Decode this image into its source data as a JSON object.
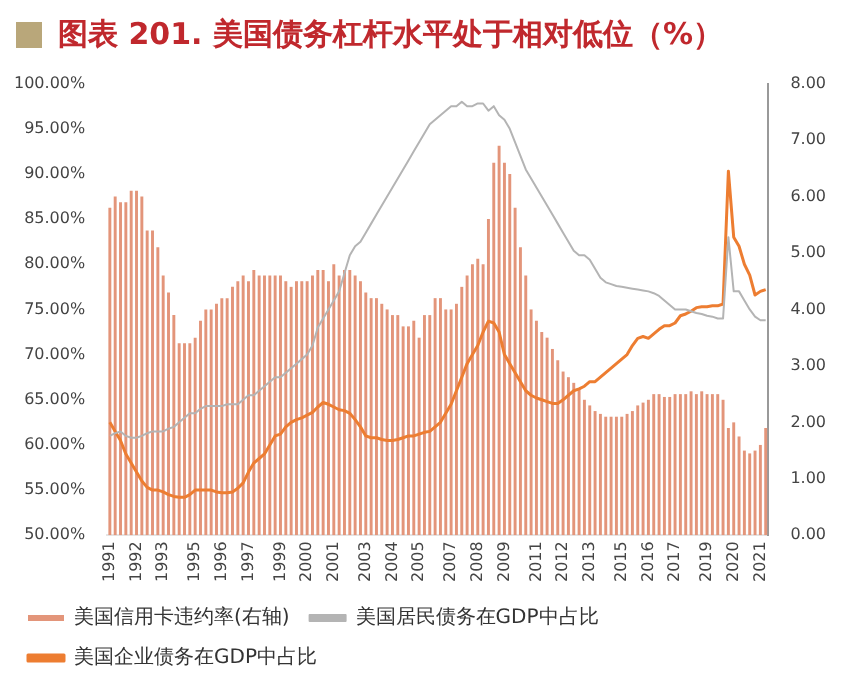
{
  "chart_data": {
    "type": "bar",
    "title": "图表 201. 美国债务杠杆水平处于相对低位（%）",
    "categories": [
      "1991",
      null,
      null,
      null,
      null,
      "1992",
      null,
      null,
      null,
      null,
      "1993",
      null,
      null,
      null,
      null,
      null,
      "1995",
      null,
      null,
      null,
      null,
      "1996",
      null,
      null,
      null,
      null,
      "1997",
      null,
      null,
      null,
      null,
      null,
      "1999",
      null,
      null,
      null,
      null,
      "2000",
      null,
      null,
      null,
      null,
      "2001",
      null,
      null,
      null,
      null,
      null,
      "2003",
      null,
      null,
      null,
      null,
      "2004",
      null,
      null,
      null,
      null,
      "2005",
      null,
      null,
      null,
      null,
      null,
      "2007",
      null,
      null,
      null,
      null,
      "2008",
      null,
      null,
      null,
      null,
      "2009",
      null,
      null,
      null,
      null,
      null,
      "2011",
      null,
      null,
      null,
      null,
      "2012",
      null,
      null,
      null,
      null,
      "2013",
      null,
      null,
      null,
      null,
      null,
      "2015",
      null,
      null,
      null,
      null,
      "2016",
      null,
      null,
      null,
      null,
      "2017",
      null,
      null,
      null,
      null,
      null,
      "2019",
      null,
      null,
      null,
      null,
      "2020",
      null,
      null,
      null,
      null,
      "2021",
      null
    ],
    "series": [
      {
        "name": "美国信用卡违约率(右轴)",
        "axis": "y2",
        "color": "#e3957a",
        "values": [
          5.8,
          6.0,
          5.9,
          5.9,
          6.1,
          6.1,
          6.0,
          5.4,
          5.4,
          5.1,
          4.6,
          4.3,
          3.9,
          3.4,
          3.4,
          3.4,
          3.5,
          3.8,
          4.0,
          4.0,
          4.1,
          4.2,
          4.2,
          4.4,
          4.5,
          4.6,
          4.5,
          4.7,
          4.6,
          4.6,
          4.6,
          4.6,
          4.6,
          4.5,
          4.4,
          4.5,
          4.5,
          4.5,
          4.6,
          4.7,
          4.7,
          4.5,
          4.8,
          4.6,
          4.7,
          4.7,
          4.6,
          4.5,
          4.3,
          4.2,
          4.2,
          4.1,
          4.0,
          3.9,
          3.9,
          3.7,
          3.7,
          3.8,
          3.5,
          3.9,
          3.9,
          4.2,
          4.2,
          4.0,
          4.0,
          4.1,
          4.4,
          4.6,
          4.8,
          4.9,
          4.8,
          5.6,
          6.6,
          6.9,
          6.6,
          6.4,
          5.8,
          5.1,
          4.6,
          4.0,
          3.8,
          3.6,
          3.5,
          3.3,
          3.1,
          2.9,
          2.8,
          2.7,
          2.6,
          2.4,
          2.3,
          2.2,
          2.15,
          2.1,
          2.1,
          2.1,
          2.1,
          2.15,
          2.2,
          2.3,
          2.35,
          2.4,
          2.5,
          2.5,
          2.45,
          2.45,
          2.5,
          2.5,
          2.5,
          2.55,
          2.5,
          2.55,
          2.5,
          2.5,
          2.5,
          2.4,
          1.9,
          2.0,
          1.75,
          1.5,
          1.45,
          1.5,
          1.6,
          1.9
        ]
      },
      {
        "name": "美国居民债务在GDP中占比",
        "type": "line",
        "color": "#b4b4b4",
        "values": [
          61,
          61.3,
          61.5,
          61,
          60.8,
          60.8,
          61,
          61.3,
          61.5,
          61.5,
          61.5,
          61.8,
          62,
          62.5,
          63,
          63.5,
          63.5,
          64,
          64.3,
          64.3,
          64.3,
          64.3,
          64.5,
          64.5,
          64.5,
          65,
          65.5,
          65.5,
          66,
          66.5,
          67,
          67.5,
          67.5,
          68,
          68.5,
          69,
          69.5,
          70,
          71,
          73,
          74,
          75,
          76,
          77,
          79,
          81,
          82,
          82.5,
          83.5,
          84.5,
          85.5,
          86.5,
          87.5,
          88.5,
          89.5,
          90.5,
          91.5,
          92.5,
          93.5,
          94.5,
          95.5,
          96,
          96.5,
          97,
          97.5,
          97.5,
          98,
          97.5,
          97.5,
          97.8,
          97.8,
          97,
          97.5,
          96.5,
          96,
          95,
          93.5,
          92,
          90.5,
          89.5,
          88.5,
          87.5,
          86.5,
          85.5,
          84.5,
          83.5,
          82.5,
          81.5,
          81,
          81,
          80.5,
          79.5,
          78.5,
          78,
          77.8,
          77.6,
          77.5,
          77.4,
          77.3,
          77.2,
          77.1,
          77,
          76.8,
          76.5,
          76,
          75.5,
          75,
          75,
          75,
          74.8,
          74.6,
          74.5,
          74.3,
          74.2,
          74,
          74,
          83,
          77,
          77,
          76,
          75,
          74.2,
          73.8,
          73.8
        ]
      },
      {
        "name": "美国企业债务在GDP中占比",
        "type": "line",
        "color": "#ed7d31",
        "values": [
          62.5,
          61.5,
          60.5,
          59,
          58,
          57,
          56,
          55.3,
          55,
          55,
          54.8,
          54.5,
          54.3,
          54.2,
          54.2,
          54.5,
          55,
          55,
          55,
          55,
          54.8,
          54.7,
          54.7,
          54.8,
          55.2,
          55.8,
          57,
          58,
          58.5,
          59,
          60,
          61,
          61.2,
          62,
          62.5,
          62.8,
          63,
          63.3,
          63.6,
          64.2,
          64.7,
          64.5,
          64.2,
          63.9,
          63.8,
          63.5,
          62.8,
          62,
          61,
          60.8,
          60.8,
          60.6,
          60.5,
          60.5,
          60.6,
          60.8,
          61,
          61,
          61.2,
          61.4,
          61.5,
          62,
          62.5,
          63.5,
          64.5,
          66,
          67.5,
          69,
          70,
          71,
          72.5,
          73.7,
          73.5,
          72.5,
          70,
          69,
          68,
          67,
          66,
          65.5,
          65.2,
          65,
          64.8,
          64.6,
          64.6,
          65,
          65.5,
          66,
          66.2,
          66.5,
          67,
          67,
          67.5,
          68,
          68.5,
          69,
          69.5,
          70,
          71,
          71.8,
          72,
          71.8,
          72.3,
          72.8,
          73.2,
          73.2,
          73.5,
          74.3,
          74.5,
          74.8,
          75.2,
          75.3,
          75.3,
          75.4,
          75.4,
          75.6,
          90.3,
          83,
          82,
          80,
          78.8,
          76.6,
          77,
          77.2
        ]
      }
    ],
    "ylim": [
      50,
      100
    ],
    "yticks": [
      {
        "value": 50,
        "label": "50.00%"
      },
      {
        "value": 55,
        "label": "55.00%"
      },
      {
        "value": 60,
        "label": "60.00%"
      },
      {
        "value": 65,
        "label": "65.00%"
      },
      {
        "value": 70,
        "label": "70.00%"
      },
      {
        "value": 75,
        "label": "75.00%"
      },
      {
        "value": 80,
        "label": "80.00%"
      },
      {
        "value": 85,
        "label": "85.00%"
      },
      {
        "value": 90,
        "label": "90.00%"
      },
      {
        "value": 95,
        "label": "95.00%"
      },
      {
        "value": 100,
        "label": "100.00%"
      }
    ],
    "y2lim": [
      0,
      8
    ],
    "y2ticks": [
      {
        "value": 0,
        "label": "0.00"
      },
      {
        "value": 1,
        "label": "1.00"
      },
      {
        "value": 2,
        "label": "2.00"
      },
      {
        "value": 3,
        "label": "3.00"
      },
      {
        "value": 4,
        "label": "4.00"
      },
      {
        "value": 5,
        "label": "5.00"
      },
      {
        "value": 6,
        "label": "6.00"
      },
      {
        "value": 7,
        "label": "7.00"
      },
      {
        "value": 8,
        "label": "8.00"
      }
    ],
    "grid": false,
    "legend": "bottom",
    "marker": "none"
  }
}
